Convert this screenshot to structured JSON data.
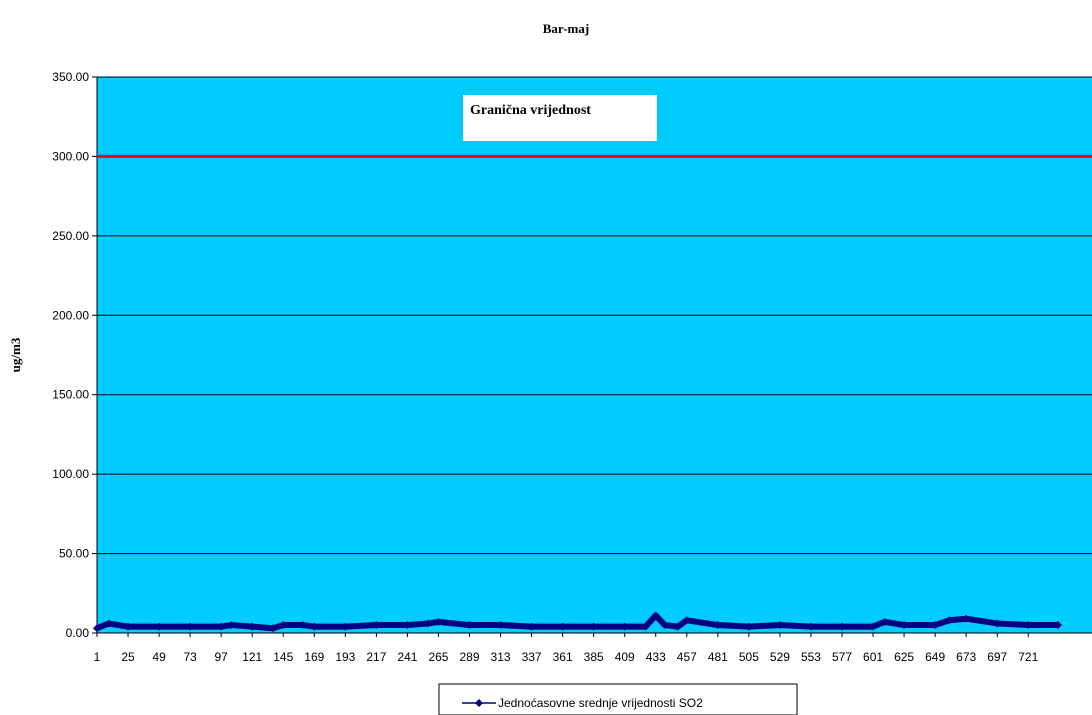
{
  "chart_data": {
    "type": "line",
    "title": "Bar-maj",
    "xlabel": "",
    "ylabel": "ug/m3",
    "ylim": [
      0,
      350
    ],
    "yticks": [
      "0.00",
      "50.00",
      "100.00",
      "150.00",
      "200.00",
      "250.00",
      "300.00",
      "350.00"
    ],
    "xticks": [
      "1",
      "25",
      "49",
      "73",
      "97",
      "121",
      "145",
      "169",
      "193",
      "217",
      "241",
      "265",
      "289",
      "313",
      "337",
      "361",
      "385",
      "409",
      "433",
      "457",
      "481",
      "505",
      "529",
      "553",
      "577",
      "601",
      "625",
      "649",
      "673",
      "697",
      "721"
    ],
    "xrange": [
      1,
      744
    ],
    "grid": true,
    "plot_background": "#00CCFF",
    "limit_line": {
      "value": 300,
      "color": "#FF0000",
      "label": "Granična vrijednost"
    },
    "series": [
      {
        "name": "Jednoćasovne srednje vrijednosti SO2",
        "color": "#000080",
        "x": [
          1,
          10,
          25,
          49,
          73,
          97,
          105,
          121,
          137,
          145,
          160,
          169,
          193,
          217,
          241,
          257,
          265,
          289,
          313,
          337,
          361,
          385,
          409,
          425,
          433,
          440,
          450,
          457,
          481,
          505,
          529,
          553,
          577,
          601,
          610,
          625,
          649,
          660,
          673,
          697,
          721,
          744
        ],
        "values": [
          3,
          6,
          4,
          4,
          4,
          4,
          5,
          4,
          3,
          5,
          5,
          4,
          4,
          5,
          5,
          6,
          7,
          5,
          5,
          4,
          4,
          4,
          4,
          4,
          11,
          5,
          4,
          8,
          5,
          4,
          5,
          4,
          4,
          4,
          7,
          5,
          5,
          8,
          9,
          6,
          5,
          5
        ]
      }
    ],
    "legend_position": "bottom"
  }
}
